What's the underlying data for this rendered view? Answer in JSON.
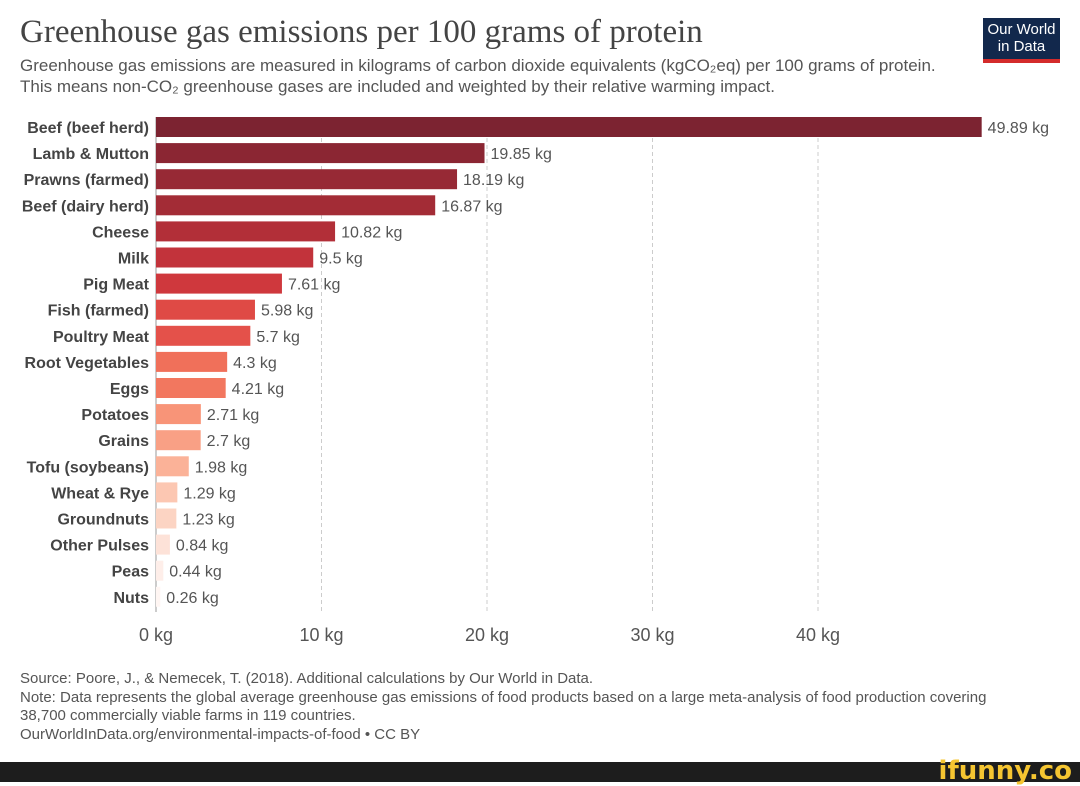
{
  "header": {
    "title": "Greenhouse gas emissions per 100 grams of protein",
    "subtitle": "Greenhouse gas emissions are measured in kilograms of carbon dioxide equivalents (kgCO₂eq) per 100 grams of protein. This means non-CO₂ greenhouse gases are included and weighted by their relative warming impact.",
    "logo": "Our World in Data"
  },
  "chart_data": {
    "type": "bar",
    "orientation": "horizontal",
    "title": "Greenhouse gas emissions per 100 grams of protein",
    "unit": "kg",
    "categories": [
      "Beef (beef herd)",
      "Lamb & Mutton",
      "Prawns (farmed)",
      "Beef (dairy herd)",
      "Cheese",
      "Milk",
      "Pig Meat",
      "Fish (farmed)",
      "Poultry Meat",
      "Root Vegetables",
      "Eggs",
      "Potatoes",
      "Grains",
      "Tofu (soybeans)",
      "Wheat & Rye",
      "Groundnuts",
      "Other Pulses",
      "Peas",
      "Nuts"
    ],
    "values": [
      49.89,
      19.85,
      18.19,
      16.87,
      10.82,
      9.5,
      7.61,
      5.98,
      5.7,
      4.3,
      4.21,
      2.71,
      2.7,
      1.98,
      1.29,
      1.23,
      0.84,
      0.44,
      0.26
    ],
    "value_labels": [
      "49.89 kg",
      "19.85 kg",
      "18.19 kg",
      "16.87 kg",
      "10.82 kg",
      "9.5 kg",
      "7.61 kg",
      "5.98 kg",
      "5.7 kg",
      "4.3 kg",
      "4.21 kg",
      "2.71 kg",
      "2.7 kg",
      "1.98 kg",
      "1.29 kg",
      "1.23 kg",
      "0.84 kg",
      "0.44 kg",
      "0.26 kg"
    ],
    "xticks": [
      0,
      10,
      20,
      30,
      40
    ],
    "xtick_labels": [
      "0 kg",
      "10 kg",
      "20 kg",
      "30 kg",
      "40 kg"
    ],
    "xlim": [
      0,
      50
    ],
    "grid": "vertical dashed",
    "colors": [
      "#7c2331",
      "#8b2633",
      "#972935",
      "#a32c36",
      "#b22f38",
      "#c2333b",
      "#cf383d",
      "#df4a45",
      "#e4514a",
      "#f0705a",
      "#f2775f",
      "#f89478",
      "#f9a085",
      "#fbb298",
      "#fcc7b2",
      "#fcd4c3",
      "#fde2d8",
      "#feeee9",
      "#fff6f3"
    ]
  },
  "footer": {
    "source": "Source: Poore, J., & Nemecek, T. (2018). Additional calculations by Our World in Data.",
    "note": "Note: Data represents the global average greenhouse gas emissions of food products based on a large meta-analysis of food production covering 38,700 commercially viable farms in 119 countries.",
    "link": "OurWorldInData.org/environmental-impacts-of-food • CC BY"
  },
  "watermark": "ifunny.co"
}
